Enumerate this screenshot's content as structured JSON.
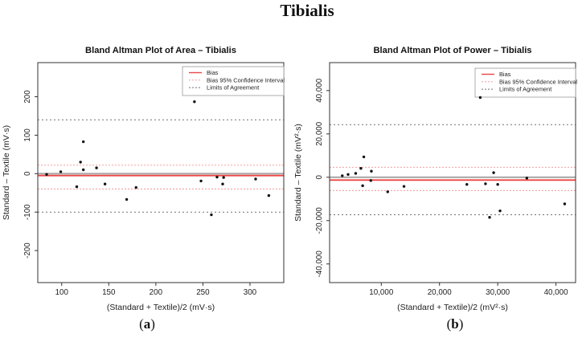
{
  "figure": {
    "title": "Tibialis",
    "captions": [
      {
        "open": "(",
        "letter": "a",
        "close": ")"
      },
      {
        "open": "(",
        "letter": "b",
        "close": ")"
      }
    ],
    "colors": {
      "bias": "#ee4545",
      "ci": "#f3a0a0",
      "loa": "#707070",
      "zero": "#aaaaaa",
      "point": "#111111",
      "axis": "#333333",
      "text": "#222222"
    }
  },
  "legend": {
    "items": [
      {
        "label": "Bias",
        "style": "solid",
        "color_key": "bias"
      },
      {
        "label": "Bias 95% Confidence Interval",
        "style": "dashed",
        "color_key": "ci"
      },
      {
        "label": "Limits of Agreement",
        "style": "dashed",
        "color_key": "loa"
      }
    ]
  },
  "chart_data": [
    {
      "type": "scatter",
      "title": "Bland Altman Plot of Area – Tibialis",
      "xlabel": "(Standard + Textile)/2 (mV·s)",
      "ylabel": "Standard – Textile (mV·s)",
      "caption": "(a)",
      "xlim": [
        74.6,
        335.9
      ],
      "ylim": [
        -283.3,
        288.7
      ],
      "xticks": [
        100,
        150,
        200,
        250,
        300
      ],
      "yticks": [
        -200,
        -100,
        0,
        100,
        200
      ],
      "grid": false,
      "legend_position": "top-right",
      "lines": {
        "zero": 0,
        "bias": -5,
        "ci_upper": 22,
        "ci_lower": -40,
        "loa_upper": 140,
        "loa_lower": -100
      },
      "points": [
        [
          84,
          -2
        ],
        [
          99,
          5
        ],
        [
          116,
          -34
        ],
        [
          120,
          30
        ],
        [
          123,
          10
        ],
        [
          123,
          83
        ],
        [
          137,
          15
        ],
        [
          146,
          -27
        ],
        [
          169,
          -67
        ],
        [
          179,
          -36
        ],
        [
          241,
          187
        ],
        [
          248,
          -19
        ],
        [
          259,
          -107
        ],
        [
          265,
          -9
        ],
        [
          271,
          -27
        ],
        [
          272,
          -10
        ],
        [
          306,
          -14
        ],
        [
          320,
          -57
        ]
      ]
    },
    {
      "type": "scatter",
      "title": "Bland Altman Plot of Power – Tibialis",
      "xlabel": "(Standard + Textile)/2 (mV²·s)",
      "ylabel": "Standard – Textile (mV²·s)",
      "caption": "(b)",
      "xlim": [
        1122,
        43375
      ],
      "ylim": [
        -48600,
        52900
      ],
      "xticks": [
        10000,
        20000,
        30000,
        40000
      ],
      "yticks": [
        -40000,
        -20000,
        0,
        20000,
        40000
      ],
      "grid": false,
      "legend_position": "top-right",
      "lines": {
        "zero": 0,
        "bias": -1300,
        "ci_upper": 4600,
        "ci_lower": -6100,
        "loa_upper": 24300,
        "loa_lower": -17300
      },
      "points": [
        [
          3300,
          700
        ],
        [
          4300,
          1300
        ],
        [
          5600,
          1800
        ],
        [
          6500,
          4100
        ],
        [
          7000,
          9400
        ],
        [
          8300,
          2800
        ],
        [
          6800,
          -3900
        ],
        [
          8200,
          -1500
        ],
        [
          11100,
          -6700
        ],
        [
          13900,
          -4200
        ],
        [
          24700,
          -3300
        ],
        [
          27000,
          36800
        ],
        [
          27900,
          -3000
        ],
        [
          29300,
          2100
        ],
        [
          30000,
          -3300
        ],
        [
          28600,
          -18500
        ],
        [
          30400,
          -15500
        ],
        [
          35000,
          -400
        ],
        [
          41500,
          -12300
        ]
      ]
    }
  ]
}
